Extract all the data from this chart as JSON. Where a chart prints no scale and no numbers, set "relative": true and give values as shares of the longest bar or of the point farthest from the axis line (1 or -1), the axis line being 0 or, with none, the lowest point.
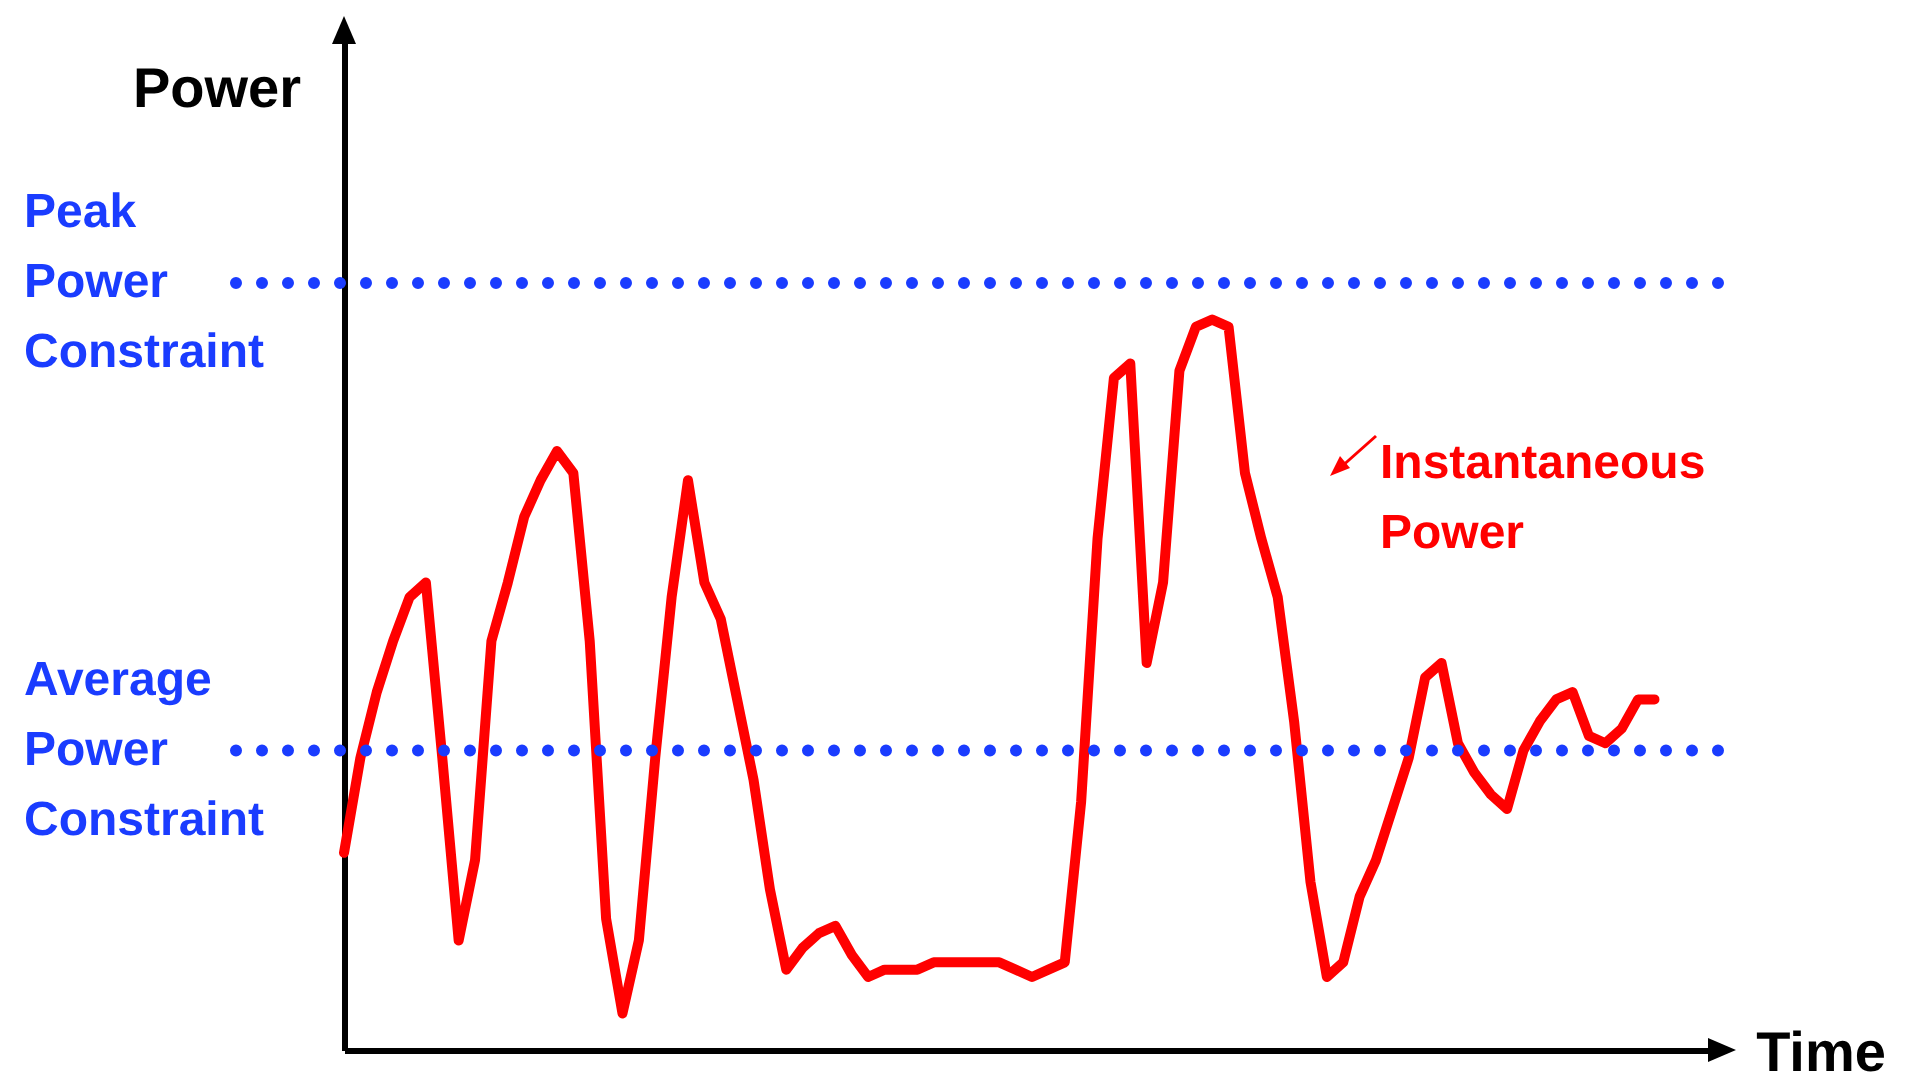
{
  "chart_data": {
    "type": "line",
    "xlabel": "Time",
    "ylabel": "Power",
    "relative": true,
    "categories": [
      null,
      null,
      null,
      null,
      null,
      null,
      null,
      null,
      null,
      null,
      null,
      null,
      null,
      null,
      null,
      null,
      null,
      null,
      null,
      null,
      null,
      null,
      null,
      null,
      null,
      null,
      null,
      null,
      null,
      null,
      null,
      null,
      null,
      null,
      null,
      null,
      null,
      null,
      null,
      null,
      null,
      null,
      null,
      null,
      null,
      null,
      null,
      null,
      null,
      null,
      null,
      null,
      null,
      null,
      null,
      null,
      null,
      null,
      null,
      null,
      null,
      null,
      null,
      null,
      null,
      null,
      null,
      null,
      null,
      null,
      null,
      null,
      null,
      null,
      null,
      null,
      null,
      null,
      null,
      null,
      null,
      null,
      null,
      null,
      null
    ],
    "series": [
      {
        "name": "Instantaneous Power",
        "color": "#ff0000",
        "values": [
          0.27,
          0.4,
          0.49,
          0.56,
          0.62,
          0.64,
          0.4,
          0.15,
          0.26,
          0.56,
          0.64,
          0.73,
          0.78,
          0.82,
          0.79,
          0.56,
          0.18,
          0.05,
          0.15,
          0.4,
          0.62,
          0.78,
          0.64,
          0.59,
          0.48,
          0.37,
          0.22,
          0.11,
          0.14,
          0.16,
          0.17,
          0.13,
          0.1,
          0.11,
          0.11,
          0.11,
          0.12,
          0.12,
          0.12,
          0.12,
          0.12,
          0.11,
          0.1,
          0.11,
          0.12,
          0.34,
          0.7,
          0.92,
          0.94,
          0.53,
          0.64,
          0.93,
          0.99,
          1.0,
          0.99,
          0.79,
          0.7,
          0.62,
          0.45,
          0.23,
          0.1,
          0.12,
          0.21,
          0.26,
          0.33,
          0.4,
          0.51,
          0.53,
          0.42,
          0.38,
          0.35,
          0.33,
          0.41,
          0.45,
          0.48,
          0.49,
          0.43,
          0.42,
          0.44,
          0.48,
          0.48,
          null,
          null,
          null,
          null
        ]
      }
    ],
    "ref_lines": [
      {
        "axis": "y",
        "value": 1.05,
        "label": "Peak Power Constraint",
        "color": "#1a3cff",
        "line_style": "dotted"
      },
      {
        "axis": "y",
        "value": 0.41,
        "label": "Average Power Constraint",
        "color": "#1a3cff",
        "line_style": "dotted"
      }
    ]
  }
}
